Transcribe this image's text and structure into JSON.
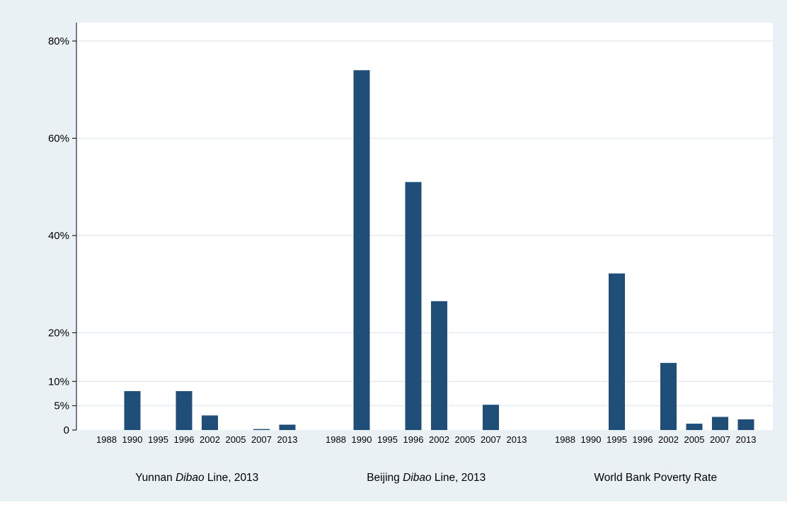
{
  "chart_data": {
    "type": "bar",
    "title": "",
    "xlabel": "",
    "ylabel": "",
    "ylim": [
      0,
      80
    ],
    "grid": true,
    "legend": "none",
    "y_ticks": [
      {
        "value": 0,
        "label": "0"
      },
      {
        "value": 5,
        "label": "5%"
      },
      {
        "value": 10,
        "label": "10%"
      },
      {
        "value": 20,
        "label": "20%"
      },
      {
        "value": 40,
        "label": "40%"
      },
      {
        "value": 60,
        "label": "60%"
      },
      {
        "value": 80,
        "label": "80%"
      }
    ],
    "categories": [
      "1988",
      "1990",
      "1995",
      "1996",
      "2002",
      "2005",
      "2007",
      "2013"
    ],
    "groups": [
      {
        "label_parts": [
          "Yunnan ",
          "Dibao",
          " Line, 2013"
        ],
        "values": [
          null,
          8,
          null,
          8,
          3,
          null,
          0.2,
          1.1
        ]
      },
      {
        "label_parts": [
          "Beijing ",
          "Dibao",
          " Line, 2013"
        ],
        "values": [
          null,
          74,
          null,
          51,
          26.5,
          null,
          5.2,
          null
        ]
      },
      {
        "label_parts": [
          "World Bank Poverty Rate",
          "",
          ""
        ],
        "values": [
          null,
          null,
          32.2,
          null,
          13.8,
          1.3,
          2.7,
          2.2
        ]
      }
    ],
    "colors": {
      "bar": "#1f4e79",
      "plot_background": "#ffffff",
      "outer_background": "#eaf1f4",
      "gridline": "#e4ecf0",
      "axis": "#000000"
    }
  }
}
